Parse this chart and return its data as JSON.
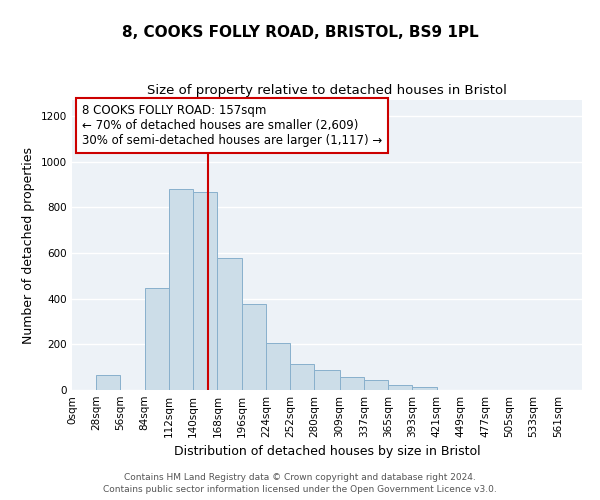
{
  "title": "8, COOKS FOLLY ROAD, BRISTOL, BS9 1PL",
  "subtitle": "Size of property relative to detached houses in Bristol",
  "xlabel": "Distribution of detached houses by size in Bristol",
  "ylabel": "Number of detached properties",
  "bar_color": "#ccdde8",
  "bar_edge_color": "#88b0cc",
  "background_color": "#edf2f7",
  "annotation_box_color": "#ffffff",
  "annotation_line_color": "#cc0000",
  "annotation_text_line1": "8 COOKS FOLLY ROAD: 157sqm",
  "annotation_text_line2": "← 70% of detached houses are smaller (2,609)",
  "annotation_text_line3": "30% of semi-detached houses are larger (1,117) →",
  "vline_x": 157,
  "categories": [
    "0sqm",
    "28sqm",
    "56sqm",
    "84sqm",
    "112sqm",
    "140sqm",
    "168sqm",
    "196sqm",
    "224sqm",
    "252sqm",
    "280sqm",
    "309sqm",
    "337sqm",
    "365sqm",
    "393sqm",
    "421sqm",
    "449sqm",
    "477sqm",
    "505sqm",
    "533sqm",
    "561sqm"
  ],
  "bin_edges": [
    0,
    28,
    56,
    84,
    112,
    140,
    168,
    196,
    224,
    252,
    280,
    309,
    337,
    365,
    393,
    421,
    449,
    477,
    505,
    533,
    561,
    589
  ],
  "values": [
    0,
    65,
    0,
    445,
    880,
    865,
    580,
    375,
    205,
    115,
    88,
    55,
    42,
    20,
    15,
    0,
    0,
    0,
    0,
    0,
    0
  ],
  "ylim": [
    0,
    1270
  ],
  "xlim": [
    0,
    589
  ],
  "footer_line1": "Contains HM Land Registry data © Crown copyright and database right 2024.",
  "footer_line2": "Contains public sector information licensed under the Open Government Licence v3.0.",
  "title_fontsize": 11,
  "subtitle_fontsize": 9.5,
  "axis_label_fontsize": 9,
  "tick_fontsize": 7.5,
  "footer_fontsize": 6.5,
  "annotation_fontsize": 8.5
}
